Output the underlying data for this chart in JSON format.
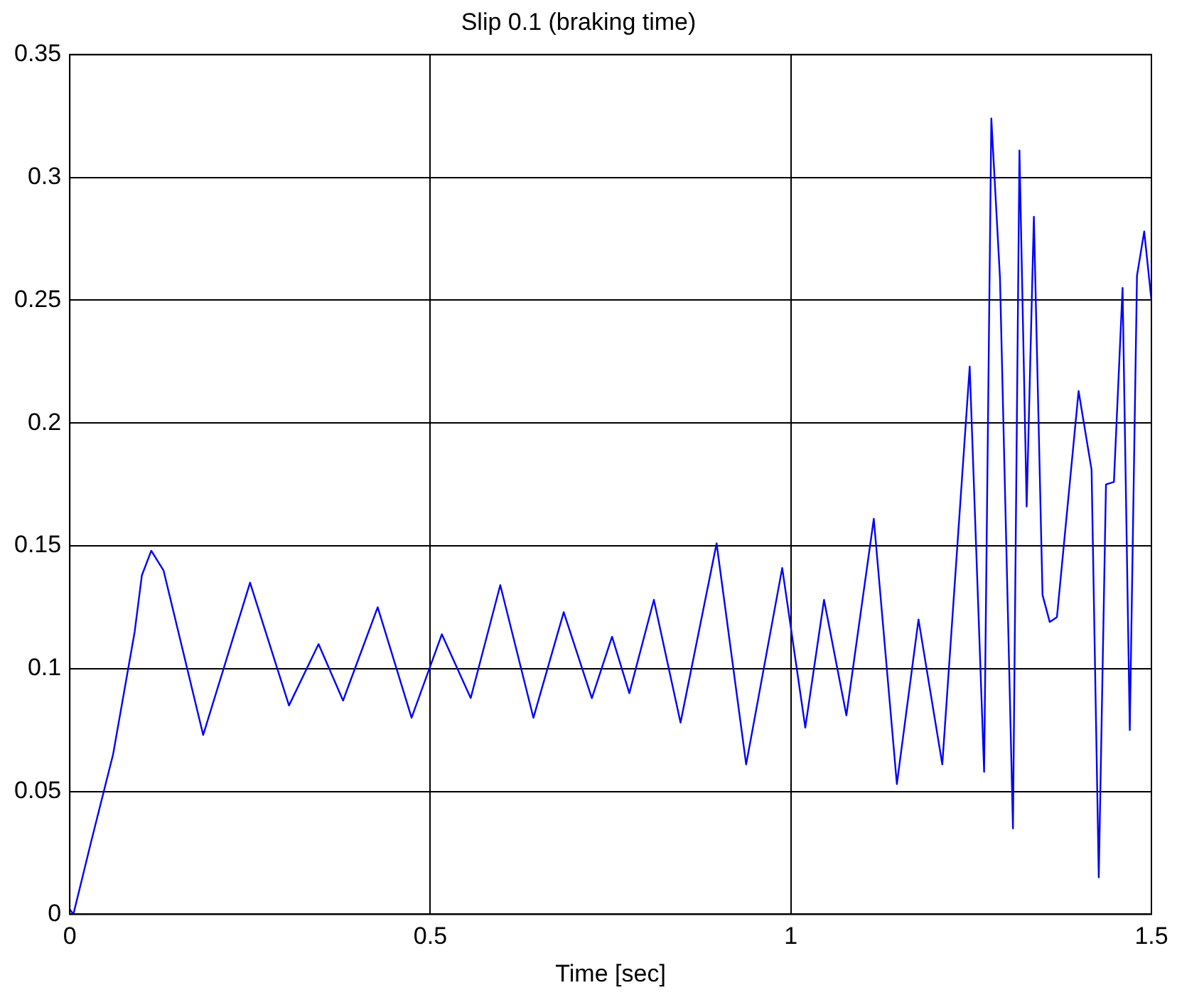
{
  "chart_data": {
    "type": "line",
    "title": "Slip 0.1 (braking time)",
    "xlabel": "Time [sec]",
    "xlim": [
      0,
      1.5
    ],
    "xticks": [
      0,
      0.5,
      1,
      1.5
    ],
    "ylim": [
      0,
      0.35
    ],
    "yticks": [
      0,
      0.05,
      0.1,
      0.15,
      0.2,
      0.25,
      0.3,
      0.35
    ],
    "grid": true,
    "legend": false,
    "marker": "none",
    "line_style": "solid",
    "series": [
      {
        "color": "#0000ff",
        "x": [
          0,
          0.005,
          0.03,
          0.06,
          0.09,
          0.1,
          0.113,
          0.13,
          0.185,
          0.25,
          0.304,
          0.345,
          0.379,
          0.427,
          0.474,
          0.516,
          0.556,
          0.597,
          0.643,
          0.685,
          0.724,
          0.752,
          0.776,
          0.81,
          0.847,
          0.897,
          0.938,
          0.988,
          1.02,
          1.046,
          1.077,
          1.115,
          1.147,
          1.177,
          1.21,
          1.248,
          1.268,
          1.278,
          1.29,
          1.308,
          1.317,
          1.327,
          1.337,
          1.349,
          1.359,
          1.369,
          1.399,
          1.417,
          1.427,
          1.437,
          1.448,
          1.46,
          1.47,
          1.48,
          1.49,
          1.5
        ],
        "values": [
          0.002,
          0,
          0.03,
          0.065,
          0.115,
          0.138,
          0.148,
          0.14,
          0.073,
          0.135,
          0.085,
          0.11,
          0.087,
          0.125,
          0.08,
          0.114,
          0.088,
          0.134,
          0.08,
          0.123,
          0.088,
          0.113,
          0.09,
          0.128,
          0.078,
          0.151,
          0.061,
          0.141,
          0.076,
          0.128,
          0.081,
          0.161,
          0.053,
          0.12,
          0.061,
          0.223,
          0.058,
          0.324,
          0.259,
          0.035,
          0.311,
          0.166,
          0.284,
          0.13,
          0.119,
          0.121,
          0.213,
          0.181,
          0.015,
          0.175,
          0.176,
          0.255,
          0.075,
          0.26,
          0.278,
          0.25
        ]
      }
    ]
  }
}
